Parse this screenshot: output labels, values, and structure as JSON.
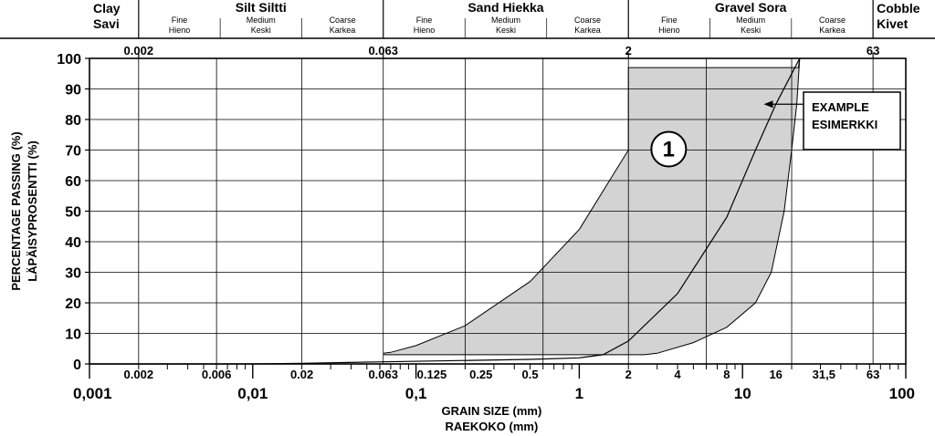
{
  "chart_data": {
    "type": "line",
    "x_scale": "log",
    "xlim": [
      0.001,
      100
    ],
    "ylim": [
      0,
      100
    ],
    "ylabel_lines": [
      "PERCENTAGE PASSING (%)",
      "LÄPÄISYPROSENTTI (%)"
    ],
    "xlabel_lines": [
      "GRAIN SIZE (mm)",
      "RAEKOKO (mm)"
    ],
    "y_ticks": [
      0,
      10,
      20,
      30,
      40,
      50,
      60,
      70,
      80,
      90,
      100
    ],
    "x_major_ticks": [
      {
        "v": 0.001,
        "label": "0,001"
      },
      {
        "v": 0.01,
        "label": "0,01"
      },
      {
        "v": 0.1,
        "label": "0,1"
      },
      {
        "v": 1,
        "label": "1"
      },
      {
        "v": 10,
        "label": "10"
      },
      {
        "v": 100,
        "label": "100"
      }
    ],
    "x_minor_ticks": [
      {
        "v": 0.002,
        "label": "0.002"
      },
      {
        "v": 0.006,
        "label": "0.006"
      },
      {
        "v": 0.02,
        "label": "0.02"
      },
      {
        "v": 0.063,
        "label": "0.063"
      },
      {
        "v": 0.125,
        "label": "0.125"
      },
      {
        "v": 0.25,
        "label": "0.25"
      },
      {
        "v": 0.5,
        "label": "0.5"
      },
      {
        "v": 2,
        "label": "2"
      },
      {
        "v": 4,
        "label": "4"
      },
      {
        "v": 8,
        "label": "8"
      },
      {
        "v": 16,
        "label": "16"
      },
      {
        "v": 31.5,
        "label": "31,5"
      },
      {
        "v": 63,
        "label": "63"
      }
    ],
    "gridlines_x": [
      0.002,
      0.006,
      0.02,
      0.063,
      0.2,
      0.6,
      2,
      6,
      20,
      63
    ],
    "top_axis_labels": [
      {
        "v": 0.002,
        "label": "0.002"
      },
      {
        "v": 0.063,
        "label": "0.063"
      },
      {
        "v": 2,
        "label": "2"
      },
      {
        "v": 63,
        "label": "63"
      }
    ],
    "classes": [
      {
        "lines": [
          "Clay",
          "Savi"
        ],
        "from": 0.001,
        "to": 0.002
      },
      {
        "title": "Silt  Siltti",
        "from": 0.002,
        "to": 0.063,
        "subs": [
          {
            "lines": [
              "Fine",
              "Hieno"
            ]
          },
          {
            "lines": [
              "Medium",
              "Keski"
            ]
          },
          {
            "lines": [
              "Coarse",
              "Karkea"
            ]
          }
        ]
      },
      {
        "title": "Sand  Hiekka",
        "from": 0.063,
        "to": 2,
        "subs": [
          {
            "lines": [
              "Fine",
              "Hieno"
            ]
          },
          {
            "lines": [
              "Medium",
              "Keski"
            ]
          },
          {
            "lines": [
              "Coarse",
              "Karkea"
            ]
          }
        ]
      },
      {
        "title": "Gravel  Sora",
        "from": 2,
        "to": 63,
        "subs": [
          {
            "lines": [
              "Fine",
              "Hieno"
            ]
          },
          {
            "lines": [
              "Medium",
              "Keski"
            ]
          },
          {
            "lines": [
              "Coarse",
              "Karkea"
            ]
          }
        ]
      },
      {
        "lines": [
          "Cobble",
          "Kivet"
        ],
        "from": 63,
        "to": 100
      }
    ],
    "zone": {
      "label": "1",
      "fine_limit": [
        [
          0.063,
          3.5
        ],
        [
          0.07,
          3.8
        ],
        [
          0.1,
          6
        ],
        [
          0.2,
          12.5
        ],
        [
          0.5,
          27
        ],
        [
          1,
          44
        ],
        [
          2,
          70
        ],
        [
          2,
          97
        ],
        [
          22,
          97
        ],
        [
          22.4,
          100
        ]
      ],
      "coarse_limit": [
        [
          0.063,
          3
        ],
        [
          2.5,
          3
        ],
        [
          3,
          3.5
        ],
        [
          5,
          7
        ],
        [
          8,
          12
        ],
        [
          12,
          20
        ],
        [
          15,
          30
        ],
        [
          18,
          50
        ],
        [
          20,
          70
        ],
        [
          21.5,
          85
        ],
        [
          22.4,
          100
        ]
      ]
    },
    "series": [
      {
        "name": "EXAMPLE",
        "points": [
          [
            0.001,
            0
          ],
          [
            0.01,
            0
          ],
          [
            0.02,
            0.2
          ],
          [
            0.063,
            0.7
          ],
          [
            0.5,
            1.5
          ],
          [
            1,
            2
          ],
          [
            1.4,
            3
          ],
          [
            2,
            7.5
          ],
          [
            4,
            23
          ],
          [
            8,
            48
          ],
          [
            12,
            70
          ],
          [
            16,
            85
          ],
          [
            22.4,
            100
          ]
        ]
      }
    ],
    "annotations": [
      {
        "type": "circle",
        "text": "1",
        "at": [
          2.8,
          70
        ]
      },
      {
        "type": "callout",
        "lines": [
          "EXAMPLE",
          "ESIMERKKI"
        ],
        "arrow_to": [
          13.5,
          85
        ]
      }
    ]
  }
}
